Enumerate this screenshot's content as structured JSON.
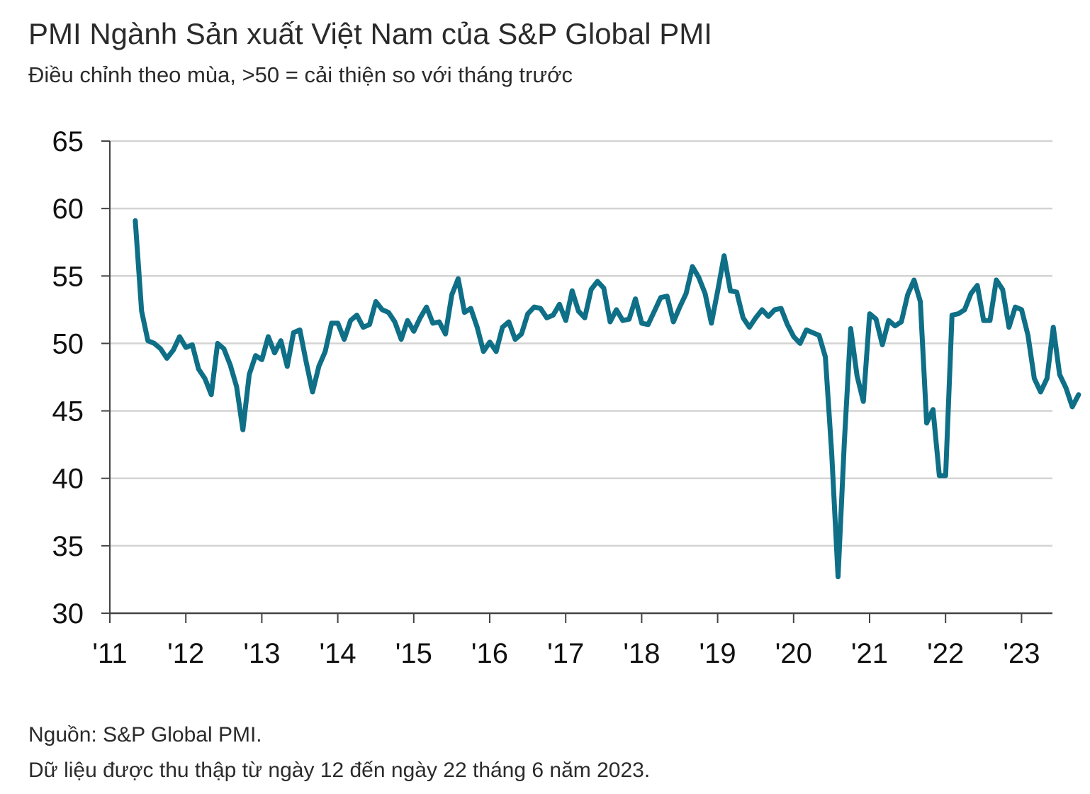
{
  "title": "PMI Ngành Sản xuất Việt Nam của S&P Global PMI",
  "subtitle": "Điều chỉnh theo mùa, >50 = cải thiện so với tháng trước",
  "footer": {
    "source": "Nguồn: S&P Global PMI.",
    "note": "Dữ liệu được thu thập từ ngày 12 đến ngày 22 tháng 6 năm 2023."
  },
  "colors": {
    "line": "#0e6f87",
    "grid": "#d4d4d4",
    "axis": "#444444"
  },
  "chart_data": {
    "type": "line",
    "xlabel": "",
    "ylabel": "",
    "ylim": [
      30,
      65
    ],
    "yticks": [
      "30",
      "35",
      "40",
      "45",
      "50",
      "55",
      "60",
      "65"
    ],
    "xticks": [
      "'11",
      "'12",
      "'13",
      "'14",
      "'15",
      "'16",
      "'17",
      "'18",
      "'19",
      "'20",
      "'21",
      "'22",
      "'23"
    ],
    "grid": "horizontal",
    "x_start": "2011-03",
    "x_frequency": "monthly",
    "series": [
      {
        "values": [
          59.1,
          52.4,
          50.2,
          50.0,
          49.6,
          48.9,
          49.5,
          50.5,
          49.7,
          49.9,
          48.1,
          47.4,
          46.2,
          50.0,
          49.6,
          48.4,
          46.8,
          43.6,
          47.7,
          49.1,
          48.8,
          50.5,
          49.3,
          50.2,
          48.3,
          50.8,
          51.0,
          48.6,
          46.4,
          48.3,
          49.4,
          51.5,
          51.5,
          50.3,
          51.7,
          52.1,
          51.2,
          51.4,
          53.1,
          52.5,
          52.3,
          51.6,
          50.3,
          51.7,
          50.9,
          51.9,
          52.7,
          51.5,
          51.6,
          50.7,
          53.6,
          54.8,
          52.3,
          52.6,
          51.2,
          49.4,
          50.1,
          49.4,
          51.2,
          51.6,
          50.3,
          50.7,
          52.2,
          52.7,
          52.6,
          51.9,
          52.1,
          52.9,
          51.7,
          53.9,
          52.4,
          51.9,
          54.0,
          54.6,
          54.1,
          51.6,
          52.5,
          51.7,
          51.8,
          53.3,
          51.5,
          51.4,
          52.4,
          53.4,
          53.5,
          51.6,
          52.7,
          53.7,
          55.7,
          54.9,
          53.7,
          51.5,
          53.9,
          56.5,
          53.9,
          53.8,
          51.9,
          51.2,
          51.9,
          52.5,
          52.0,
          52.5,
          52.6,
          51.4,
          50.5,
          50.0,
          51.0,
          50.8,
          50.6,
          49.0,
          41.9,
          32.7,
          42.7,
          51.1,
          47.6,
          45.7,
          52.2,
          51.8,
          49.9,
          51.7,
          51.3,
          51.6,
          53.6,
          54.7,
          53.1,
          44.1,
          45.1,
          40.2,
          40.2,
          52.1,
          52.2,
          52.5,
          53.7,
          54.3,
          51.7,
          51.7,
          54.7,
          54.0,
          51.2,
          52.7,
          52.5,
          50.6,
          47.4,
          46.4,
          47.4,
          51.2,
          47.7,
          46.7,
          45.3,
          46.2
        ]
      }
    ]
  }
}
